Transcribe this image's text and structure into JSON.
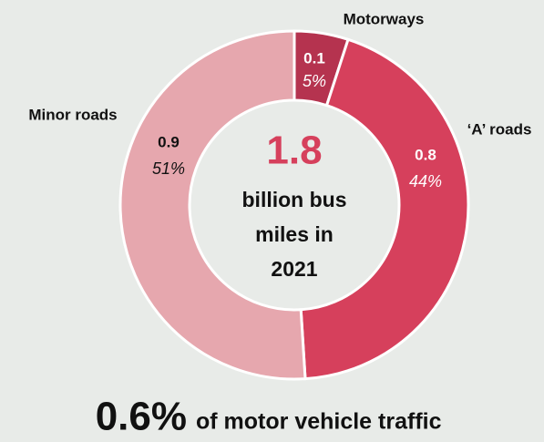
{
  "chart_data": {
    "type": "donut",
    "categories": [
      "Motorways",
      "‘A’ roads",
      "Minor roads"
    ],
    "values": [
      0.1,
      0.8,
      0.9
    ],
    "shares": [
      5,
      44,
      51
    ],
    "share_labels": [
      "5%",
      "44%",
      "51%"
    ],
    "colors": [
      "#b5334f",
      "#d6405c",
      "#e6a7ae"
    ],
    "center_value": "1.8",
    "center_caption": [
      "billion bus",
      "miles in",
      "2021"
    ],
    "footer_value": "0.6%",
    "footer_text": "of motor vehicle traffic"
  }
}
